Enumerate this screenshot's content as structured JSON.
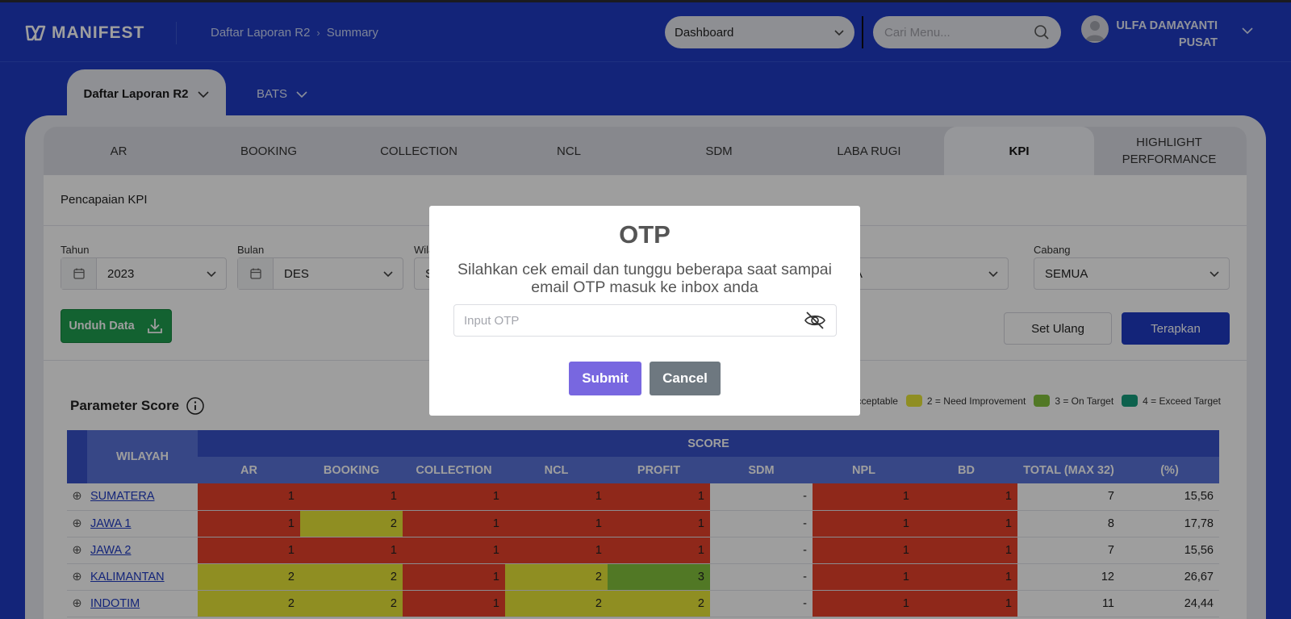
{
  "header": {
    "logo_text": "MANIFEST",
    "breadcrumb": [
      "Daftar Laporan R2",
      "Summary"
    ],
    "dashboard_select": "Dashboard",
    "search_placeholder": "Cari Menu...",
    "user_name": "ULFA DAMAYANTI",
    "user_unit": "PUSAT"
  },
  "top_tabs": [
    {
      "label": "Daftar Laporan R2",
      "active": true
    },
    {
      "label": "BATS",
      "active": false
    }
  ],
  "tabs": [
    "AR",
    "BOOKING",
    "COLLECTION",
    "NCL",
    "SDM",
    "LABA RUGI",
    "KPI",
    "HIGHLIGHT PERFORMANCE"
  ],
  "active_tab": "KPI",
  "section_title": "Pencapaian KPI",
  "filters": {
    "tahun": {
      "label": "Tahun",
      "value": "2023"
    },
    "bulan": {
      "label": "Bulan",
      "value": "DES"
    },
    "wilayah": {
      "label": "Wila",
      "value": "S"
    },
    "area": {
      "label": "",
      "value": "UA"
    },
    "cabang": {
      "label": "Cabang",
      "value": "SEMUA"
    }
  },
  "buttons": {
    "unduh": "Unduh Data",
    "reset": "Set Ulang",
    "apply": "Terapkan"
  },
  "parameter_title": "Parameter Score",
  "legend": [
    {
      "label": "cceptable",
      "color": "#e7412b"
    },
    {
      "label": "2 = Need Improvement",
      "color": "#e7e637"
    },
    {
      "label": "3 = On Target",
      "color": "#83c23d"
    },
    {
      "label": "4 = Exceed Target",
      "color": "#169d7d"
    }
  ],
  "table": {
    "wilayah_header": "WILAYAH",
    "score_header": "SCORE",
    "columns": [
      "AR",
      "BOOKING",
      "COLLECTION",
      "NCL",
      "PROFIT",
      "SDM",
      "NPL",
      "BD",
      "TOTAL (MAX 32)",
      "(%)"
    ],
    "rows": [
      {
        "name": "SUMATERA",
        "values": [
          "1",
          "1",
          "1",
          "1",
          "1",
          "-",
          "1",
          "1",
          "7",
          "15,56"
        ]
      },
      {
        "name": "JAWA 1",
        "values": [
          "1",
          "2",
          "1",
          "1",
          "1",
          "-",
          "1",
          "1",
          "8",
          "17,78"
        ]
      },
      {
        "name": "JAWA 2",
        "values": [
          "1",
          "1",
          "1",
          "1",
          "1",
          "-",
          "1",
          "1",
          "7",
          "15,56"
        ]
      },
      {
        "name": "KALIMANTAN",
        "values": [
          "2",
          "2",
          "1",
          "2",
          "3",
          "-",
          "1",
          "1",
          "12",
          "26,67"
        ]
      },
      {
        "name": "INDOTIM",
        "values": [
          "2",
          "2",
          "1",
          "2",
          "2",
          "-",
          "1",
          "1",
          "11",
          "24,44"
        ]
      }
    ]
  },
  "modal": {
    "title": "OTP",
    "message": "Silahkan cek email dan tunggu beberapa saat sampai email OTP masuk ke inbox anda",
    "input_placeholder": "Input OTP",
    "submit": "Submit",
    "cancel": "Cancel"
  }
}
